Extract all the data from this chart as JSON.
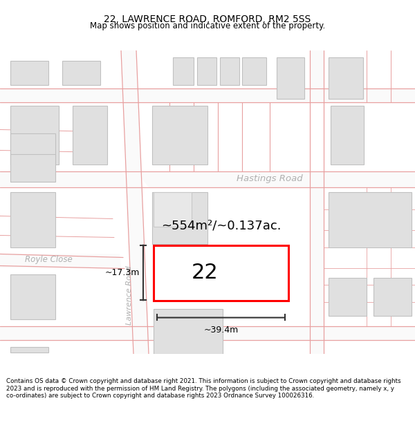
{
  "title": "22, LAWRENCE ROAD, ROMFORD, RM2 5SS",
  "subtitle": "Map shows position and indicative extent of the property.",
  "footer": "Contains OS data © Crown copyright and database right 2021. This information is subject to Crown copyright and database rights 2023 and is reproduced with the permission of HM Land Registry. The polygons (including the associated geometry, namely x, y co-ordinates) are subject to Crown copyright and database rights 2023 Ordnance Survey 100026316.",
  "map_bg": "#f2f0f0",
  "road_fill": "#ffffff",
  "building_fill": "#e0e0e0",
  "building_edge": "#c0c0c0",
  "road_line_color": "#e8a0a0",
  "highlight_fill": "#ffffff",
  "highlight_edge": "#ff0000",
  "highlight_lw": 2.2,
  "area_label": "~554m²/~0.137ac.",
  "width_label": "~39.4m",
  "height_label": "~17.3m",
  "number_label": "22",
  "road_label_hastings": "Hastings Road",
  "road_label_lawrence": "Lawrence Road",
  "street_label_royle": "Royle Close"
}
